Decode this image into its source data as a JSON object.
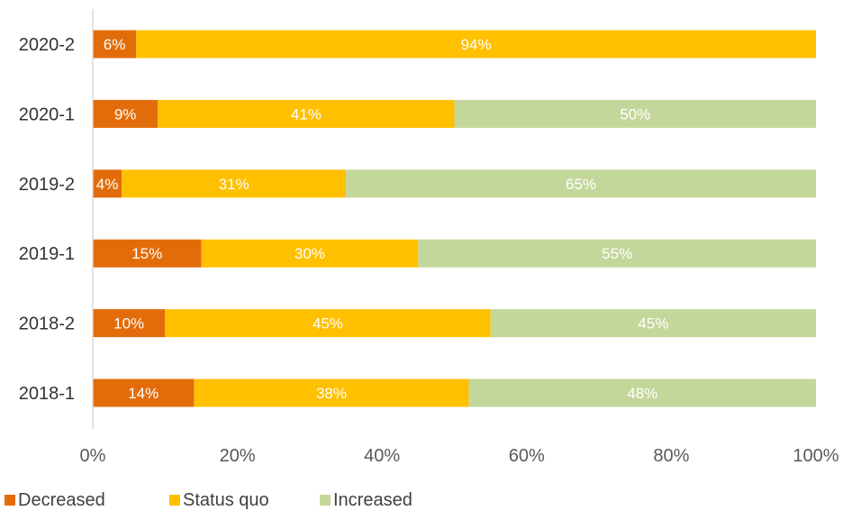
{
  "chart_data": {
    "type": "bar",
    "orientation": "horizontal",
    "stacked": true,
    "categories": [
      "2020-2",
      "2020-1",
      "2019-2",
      "2019-1",
      "2018-2",
      "2018-1"
    ],
    "series": [
      {
        "name": "Decreased",
        "color": "#E36C0A",
        "values": [
          6,
          9,
          4,
          15,
          10,
          14
        ],
        "labels": [
          "6%",
          "9%",
          "4%",
          "15%",
          "10%",
          "14%"
        ]
      },
      {
        "name": "Status quo",
        "color": "#FFC000",
        "values": [
          94,
          41,
          31,
          30,
          45,
          38
        ],
        "labels": [
          "94%",
          "41%",
          "31%",
          "30%",
          "45%",
          "38%"
        ]
      },
      {
        "name": "Increased",
        "color": "#C4D79B",
        "values": [
          0,
          50,
          65,
          55,
          45,
          48
        ],
        "labels": [
          "",
          "50%",
          "65%",
          "55%",
          "45%",
          "48%"
        ]
      }
    ],
    "xlim": [
      0,
      100
    ],
    "xticks": [
      0,
      20,
      40,
      60,
      80,
      100
    ],
    "xtick_labels": [
      "0%",
      "20%",
      "40%",
      "60%",
      "80%",
      "100%"
    ],
    "title": "",
    "xlabel": "",
    "ylabel": "",
    "grid": false,
    "legend_position": "bottom-left"
  }
}
